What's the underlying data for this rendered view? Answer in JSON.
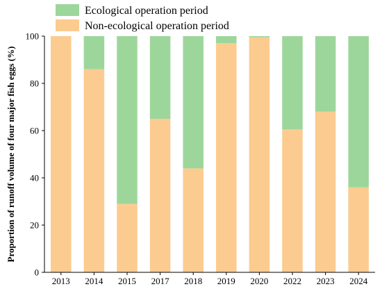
{
  "chart_data": {
    "type": "bar",
    "stacked": true,
    "categories": [
      "2013",
      "2014",
      "2015",
      "2017",
      "2018",
      "2019",
      "2020",
      "2022",
      "2023",
      "2024"
    ],
    "series": [
      {
        "name": "Non-ecological operation period",
        "color": "#fccb90",
        "values": [
          100,
          86,
          29,
          65,
          44,
          97,
          99.5,
          60.5,
          68,
          36
        ]
      },
      {
        "name": "Ecological operation period",
        "color": "#9dd69b",
        "values": [
          0,
          14,
          71,
          35,
          56,
          3,
          0.5,
          39.5,
          32,
          64
        ]
      }
    ],
    "ylabel": "Proportion of runoff volume of four major fish eggs (%)",
    "xlabel": "",
    "ylim": [
      0,
      100
    ],
    "yticks": [
      0,
      20,
      40,
      60,
      80,
      100
    ],
    "grid": false,
    "legend_position": "top"
  }
}
